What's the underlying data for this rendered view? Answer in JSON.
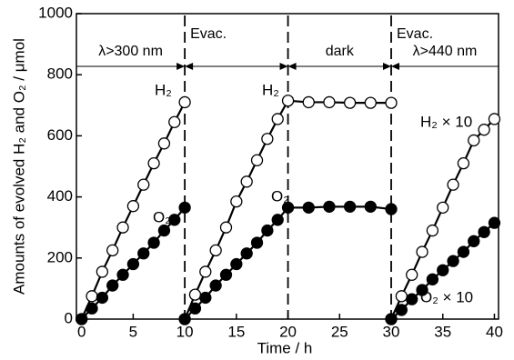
{
  "chart_data": {
    "type": "line",
    "xlabel": "Time / h",
    "ylabel": "Amounts of evolved H₂ and O₂ / μmol",
    "xlim": [
      -0.5,
      40.4
    ],
    "ylim": [
      0,
      1000
    ],
    "xticks": [
      0,
      5,
      10,
      15,
      20,
      25,
      30,
      35,
      40
    ],
    "yticks": [
      0,
      200,
      400,
      600,
      800,
      1000
    ],
    "series": [
      {
        "name": "H₂",
        "color": "#000000",
        "marker": "open",
        "x": [
          0,
          1,
          2,
          3,
          4,
          5,
          6,
          7,
          8,
          9,
          10,
          null,
          10,
          11,
          12,
          13,
          14,
          15,
          16,
          17,
          18,
          19,
          20,
          22,
          24,
          26,
          28,
          30,
          null,
          30,
          31,
          32,
          33,
          34,
          35,
          36,
          37,
          38,
          39,
          40
        ],
        "values": [
          0,
          75,
          155,
          225,
          300,
          370,
          440,
          510,
          575,
          645,
          710,
          null,
          0,
          80,
          155,
          225,
          300,
          385,
          450,
          520,
          590,
          655,
          715,
          710,
          710,
          708,
          708,
          708,
          null,
          0,
          75,
          145,
          220,
          290,
          365,
          440,
          510,
          585,
          620,
          655
        ]
      },
      {
        "name": "O₂",
        "color": "#000000",
        "marker": "filled",
        "x": [
          0,
          1,
          2,
          3,
          4,
          5,
          6,
          7,
          8,
          9,
          10,
          null,
          10,
          11,
          12,
          13,
          14,
          15,
          16,
          17,
          18,
          19,
          20,
          22,
          24,
          26,
          28,
          30,
          null,
          30,
          31,
          32,
          33,
          34,
          35,
          36,
          37,
          38,
          39,
          40
        ],
        "values": [
          0,
          35,
          70,
          110,
          145,
          180,
          215,
          250,
          290,
          325,
          365,
          null,
          0,
          35,
          70,
          110,
          145,
          180,
          215,
          250,
          290,
          325,
          365,
          365,
          368,
          368,
          368,
          360,
          null,
          0,
          30,
          65,
          95,
          130,
          160,
          190,
          220,
          255,
          285,
          315
        ]
      }
    ],
    "vlines": [
      10,
      20,
      30
    ],
    "period_labels": [
      "λ>300 nm",
      "dark",
      "λ>440 nm"
    ],
    "evac_label": "Evac.",
    "annotations": [
      "H₂",
      "O₂",
      "H₂ × 10",
      "O₂ × 10"
    ]
  }
}
